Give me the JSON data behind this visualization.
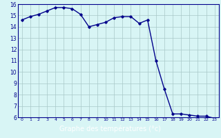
{
  "x": [
    0,
    1,
    2,
    3,
    4,
    5,
    6,
    7,
    8,
    9,
    10,
    11,
    12,
    13,
    14,
    15,
    16,
    17,
    18,
    19,
    20,
    21,
    22,
    23
  ],
  "y": [
    14.6,
    14.9,
    15.1,
    15.4,
    15.7,
    15.7,
    15.6,
    15.1,
    14.0,
    14.2,
    14.4,
    14.8,
    14.9,
    14.9,
    14.3,
    14.6,
    11.0,
    8.5,
    6.3,
    6.3,
    6.2,
    6.1,
    6.1,
    5.9
  ],
  "line_color": "#00008b",
  "marker": "D",
  "marker_size": 1.8,
  "line_width": 1.0,
  "xlabel": "Graphe des températures (°c)",
  "xlabel_fontsize": 7,
  "ylim": [
    6,
    16
  ],
  "xlim": [
    -0.5,
    23.5
  ],
  "yticks": [
    6,
    7,
    8,
    9,
    10,
    11,
    12,
    13,
    14,
    15,
    16
  ],
  "xticks": [
    0,
    1,
    2,
    3,
    4,
    5,
    6,
    7,
    8,
    9,
    10,
    11,
    12,
    13,
    14,
    15,
    16,
    17,
    18,
    19,
    20,
    21,
    22,
    23
  ],
  "xtick_labels": [
    "0",
    "1",
    "2",
    "3",
    "4",
    "5",
    "6",
    "7",
    "8",
    "9",
    "10",
    "11",
    "12",
    "13",
    "14",
    "15",
    "16",
    "17",
    "18",
    "19",
    "20",
    "21",
    "22",
    "23"
  ],
  "background_color": "#d8f5f5",
  "grid_color": "#a8c8c8",
  "tick_color": "#00008b",
  "spine_color": "#00008b",
  "bottom_bar_color": "#00008b",
  "bottom_bar_text_color": "#ffffff",
  "fig_width": 3.2,
  "fig_height": 2.0,
  "dpi": 100
}
